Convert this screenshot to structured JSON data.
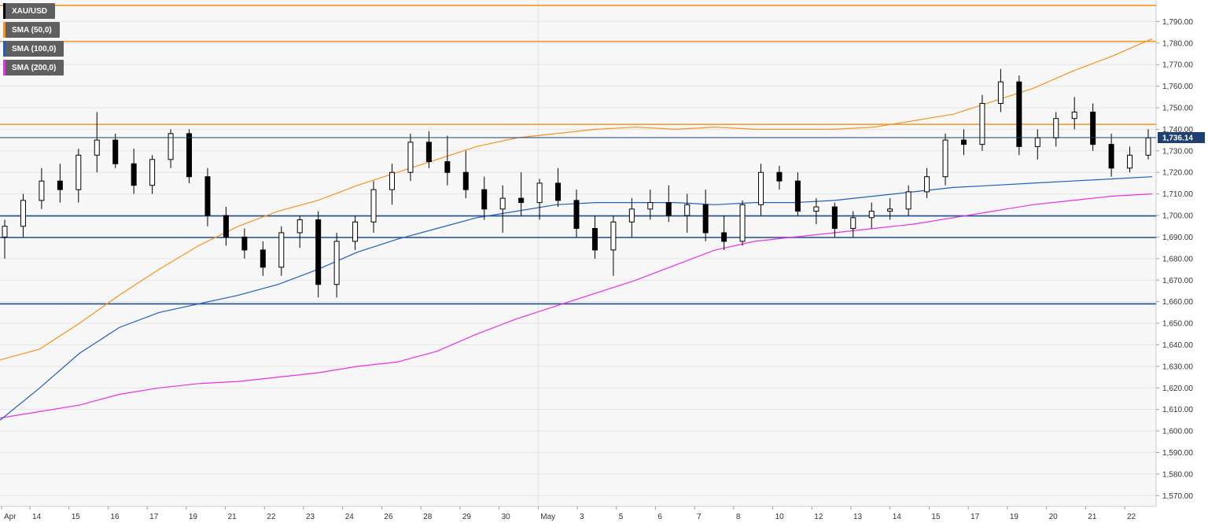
{
  "legend": [
    {
      "label": "XAU/USD",
      "color": "#000000"
    },
    {
      "label": "SMA (50,0)",
      "color": "#f7931e"
    },
    {
      "label": "SMA (100,0)",
      "color": "#1f5fbf"
    },
    {
      "label": "SMA (200,0)",
      "color": "#e830e8"
    }
  ],
  "current_price_label": "1,736.14",
  "chart_data": {
    "type": "candlestick",
    "symbol": "XAU/USD",
    "ylim": [
      1565,
      1800
    ],
    "yticks": [
      1570,
      1580,
      1590,
      1600,
      1610,
      1620,
      1630,
      1640,
      1650,
      1660,
      1670,
      1680,
      1690,
      1700,
      1710,
      1720,
      1730,
      1740,
      1750,
      1760,
      1770,
      1780,
      1790
    ],
    "ytick_labels": [
      "1,570.00",
      "1,580.00",
      "1,590.00",
      "1,600.00",
      "1,610.00",
      "1,620.00",
      "1,630.00",
      "1,640.00",
      "1,650.00",
      "1,660.00",
      "1,670.00",
      "1,680.00",
      "1,690.00",
      "1,700.00",
      "1,710.00",
      "1,720.00",
      "1,730.00",
      "1,740.00",
      "1,750.00",
      "1,760.00",
      "1,770.00",
      "1,780.00",
      "1,790.00"
    ],
    "xticks": [
      "Apr",
      "14",
      "15",
      "16",
      "17",
      "19",
      "21",
      "22",
      "23",
      "24",
      "26",
      "28",
      "29",
      "30",
      "May",
      "3",
      "5",
      "6",
      "7",
      "8",
      "10",
      "12",
      "13",
      "14",
      "15",
      "17",
      "19",
      "20",
      "21",
      "22"
    ],
    "horizontal_levels": [
      {
        "price": 1797.5,
        "color": "#f7931e"
      },
      {
        "price": 1780.8,
        "color": "#f7931e"
      },
      {
        "price": 1742.3,
        "color": "#f7931e"
      },
      {
        "price": 1699.8,
        "color": "#1f4f8f"
      },
      {
        "price": 1689.8,
        "color": "#1f4f8f"
      },
      {
        "price": 1659.0,
        "color": "#1f4f8f"
      }
    ],
    "current_price": 1736.14,
    "sma_50": [
      1633,
      1638,
      1650,
      1663,
      1675,
      1686,
      1695,
      1702,
      1707,
      1714,
      1720,
      1726,
      1732,
      1736,
      1738,
      1740,
      1741,
      1740,
      1741,
      1740,
      1740,
      1740,
      1741,
      1744,
      1747,
      1753,
      1759,
      1767,
      1774,
      1782
    ],
    "sma_100": [
      1605,
      1620,
      1636,
      1648,
      1655,
      1659,
      1663,
      1668,
      1675,
      1683,
      1689,
      1694,
      1699,
      1702,
      1705,
      1706,
      1706,
      1706,
      1705,
      1706,
      1706,
      1707,
      1709,
      1711,
      1713,
      1714,
      1715,
      1716,
      1717,
      1718
    ],
    "sma_200": [
      1606,
      1609,
      1612,
      1617,
      1620,
      1622,
      1623,
      1625,
      1627,
      1630,
      1632,
      1637,
      1645,
      1652,
      1658,
      1664,
      1670,
      1677,
      1684,
      1688,
      1690,
      1692,
      1694,
      1696,
      1699,
      1702,
      1705,
      1707,
      1709,
      1710
    ],
    "candles": [
      [
        1690,
        1698,
        1680,
        1695
      ],
      [
        1695,
        1710,
        1690,
        1707
      ],
      [
        1707,
        1722,
        1703,
        1716
      ],
      [
        1716,
        1724,
        1706,
        1712
      ],
      [
        1712,
        1731,
        1706,
        1728
      ],
      [
        1728,
        1748,
        1720,
        1735
      ],
      [
        1735,
        1738,
        1722,
        1724
      ],
      [
        1724,
        1731,
        1710,
        1714
      ],
      [
        1714,
        1728,
        1710,
        1726
      ],
      [
        1726,
        1740,
        1722,
        1738
      ],
      [
        1738,
        1740,
        1715,
        1718
      ],
      [
        1718,
        1722,
        1695,
        1700
      ],
      [
        1700,
        1704,
        1686,
        1690
      ],
      [
        1690,
        1694,
        1680,
        1684
      ],
      [
        1684,
        1688,
        1672,
        1676
      ],
      [
        1676,
        1695,
        1672,
        1692
      ],
      [
        1692,
        1700,
        1685,
        1698
      ],
      [
        1698,
        1702,
        1662,
        1668
      ],
      [
        1668,
        1692,
        1662,
        1688
      ],
      [
        1688,
        1700,
        1684,
        1697
      ],
      [
        1697,
        1716,
        1692,
        1712
      ],
      [
        1712,
        1724,
        1705,
        1720
      ],
      [
        1720,
        1738,
        1716,
        1734
      ],
      [
        1734,
        1739,
        1722,
        1725
      ],
      [
        1725,
        1737,
        1714,
        1720
      ],
      [
        1720,
        1730,
        1708,
        1712
      ],
      [
        1712,
        1718,
        1698,
        1703
      ],
      [
        1703,
        1714,
        1692,
        1708
      ],
      [
        1708,
        1720,
        1700,
        1706
      ],
      [
        1706,
        1717,
        1698,
        1715
      ],
      [
        1715,
        1722,
        1704,
        1707
      ],
      [
        1707,
        1712,
        1690,
        1694
      ],
      [
        1694,
        1700,
        1680,
        1684
      ],
      [
        1684,
        1700,
        1672,
        1697
      ],
      [
        1697,
        1708,
        1690,
        1703
      ],
      [
        1703,
        1712,
        1698,
        1706
      ],
      [
        1706,
        1714,
        1697,
        1700
      ],
      [
        1700,
        1710,
        1692,
        1705
      ],
      [
        1705,
        1712,
        1688,
        1692
      ],
      [
        1692,
        1700,
        1684,
        1688
      ],
      [
        1688,
        1707,
        1686,
        1705
      ],
      [
        1705,
        1724,
        1700,
        1720
      ],
      [
        1720,
        1723,
        1712,
        1716
      ],
      [
        1716,
        1720,
        1700,
        1702
      ],
      [
        1702,
        1708,
        1696,
        1704
      ],
      [
        1704,
        1706,
        1690,
        1694
      ],
      [
        1694,
        1702,
        1690,
        1699
      ],
      [
        1699,
        1706,
        1694,
        1702
      ],
      [
        1702,
        1708,
        1698,
        1703
      ],
      [
        1703,
        1714,
        1700,
        1711
      ],
      [
        1711,
        1722,
        1708,
        1718
      ],
      [
        1718,
        1738,
        1714,
        1735
      ],
      [
        1735,
        1740,
        1728,
        1733
      ],
      [
        1733,
        1756,
        1730,
        1752
      ],
      [
        1752,
        1768,
        1748,
        1762
      ],
      [
        1762,
        1765,
        1728,
        1732
      ],
      [
        1732,
        1740,
        1726,
        1736
      ],
      [
        1736,
        1748,
        1732,
        1745
      ],
      [
        1745,
        1755,
        1740,
        1748
      ],
      [
        1748,
        1752,
        1730,
        1733
      ],
      [
        1733,
        1738,
        1718,
        1722
      ],
      [
        1722,
        1732,
        1720,
        1728
      ],
      [
        1728,
        1740,
        1726,
        1736
      ]
    ]
  }
}
